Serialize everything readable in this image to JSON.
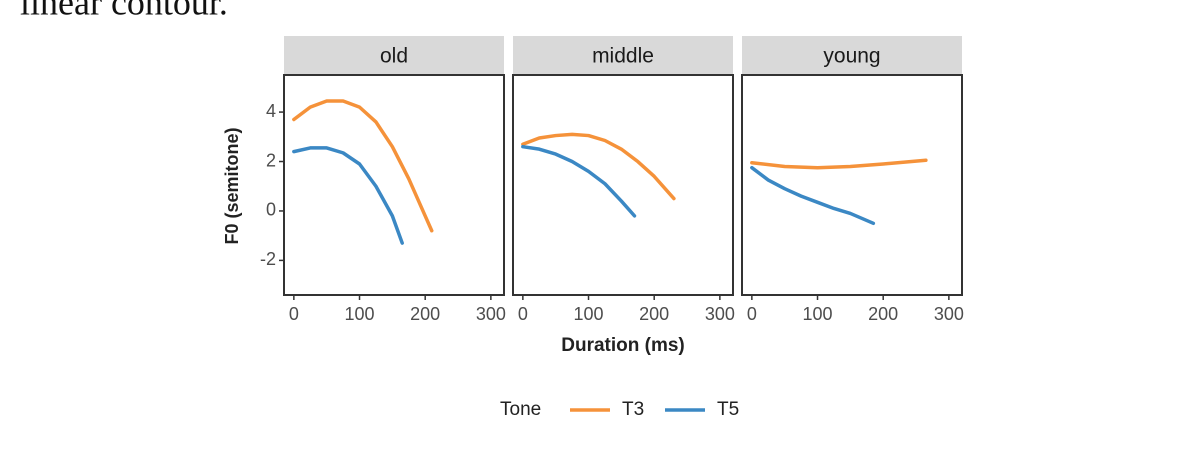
{
  "text": "linear contour.",
  "shared": {
    "x_label": "Duration (ms)",
    "y_label": "F0 (semitone)",
    "legend_title": "Tone"
  },
  "chart_data": [
    {
      "type": "line",
      "title": "old",
      "xlim": [
        -15,
        320
      ],
      "ylim": [
        -3.4,
        5.5
      ],
      "xticks": [
        0,
        100,
        200,
        300
      ],
      "yticks": [
        -2,
        0,
        2,
        4
      ],
      "series": [
        {
          "name": "T3",
          "color": "#f5923a",
          "x": [
            0,
            25,
            50,
            75,
            100,
            125,
            150,
            175,
            200,
            210
          ],
          "values": [
            3.7,
            4.2,
            4.45,
            4.45,
            4.2,
            3.6,
            2.6,
            1.3,
            -0.2,
            -0.8
          ]
        },
        {
          "name": "T5",
          "color": "#3b88c4",
          "x": [
            0,
            25,
            50,
            75,
            100,
            125,
            150,
            165
          ],
          "values": [
            2.4,
            2.55,
            2.55,
            2.35,
            1.9,
            1.0,
            -0.2,
            -1.3
          ]
        }
      ]
    },
    {
      "type": "line",
      "title": "middle",
      "xlim": [
        -15,
        320
      ],
      "ylim": [
        -3.4,
        5.5
      ],
      "xticks": [
        0,
        100,
        200,
        300
      ],
      "series": [
        {
          "name": "T3",
          "color": "#f5923a",
          "x": [
            0,
            25,
            50,
            75,
            100,
            125,
            150,
            175,
            200,
            230
          ],
          "values": [
            2.7,
            2.95,
            3.05,
            3.1,
            3.05,
            2.85,
            2.5,
            2.0,
            1.4,
            0.5
          ]
        },
        {
          "name": "T5",
          "color": "#3b88c4",
          "x": [
            0,
            25,
            50,
            75,
            100,
            125,
            150,
            170
          ],
          "values": [
            2.6,
            2.5,
            2.3,
            2.0,
            1.6,
            1.1,
            0.4,
            -0.2
          ]
        }
      ]
    },
    {
      "type": "line",
      "title": "young",
      "xlim": [
        -15,
        320
      ],
      "ylim": [
        -3.4,
        5.5
      ],
      "xticks": [
        0,
        100,
        200,
        300
      ],
      "series": [
        {
          "name": "T3",
          "color": "#f5923a",
          "x": [
            0,
            50,
            100,
            150,
            200,
            265
          ],
          "values": [
            1.95,
            1.8,
            1.75,
            1.8,
            1.9,
            2.05
          ]
        },
        {
          "name": "T5",
          "color": "#3b88c4",
          "x": [
            0,
            25,
            50,
            75,
            100,
            125,
            150,
            185
          ],
          "values": [
            1.75,
            1.25,
            0.9,
            0.6,
            0.35,
            0.1,
            -0.1,
            -0.5
          ]
        }
      ]
    }
  ]
}
